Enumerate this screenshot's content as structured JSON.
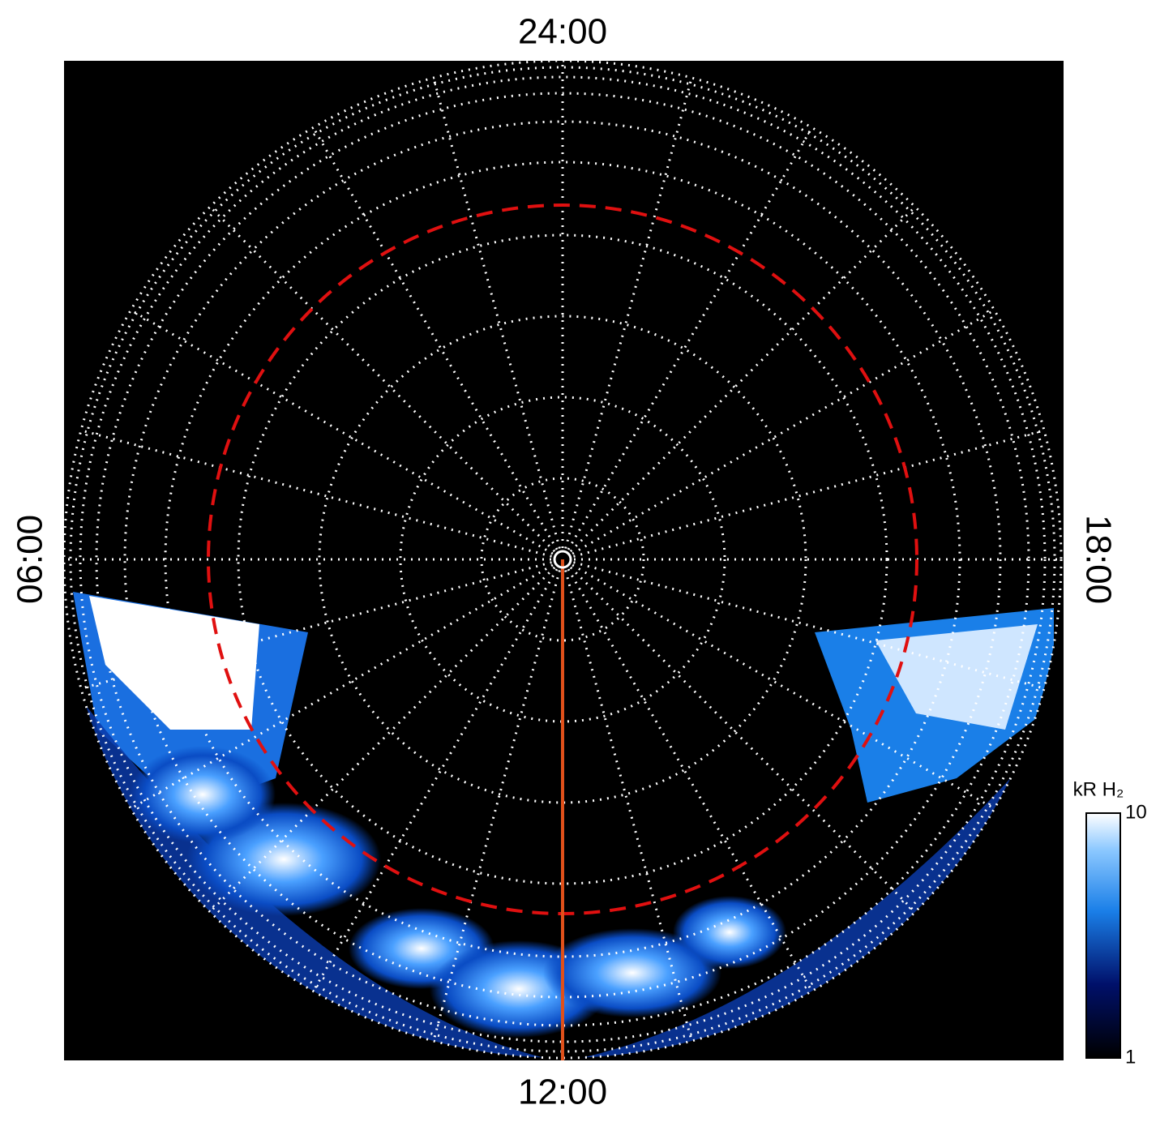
{
  "panel": {
    "labels": {
      "top": "24:00",
      "bottom": "12:00",
      "left": "06:00",
      "right": "18:00"
    }
  },
  "colorbar": {
    "title": "kR H₂",
    "scale": "log",
    "range": [
      1,
      10
    ],
    "ticks": [
      1,
      10
    ]
  }
}
